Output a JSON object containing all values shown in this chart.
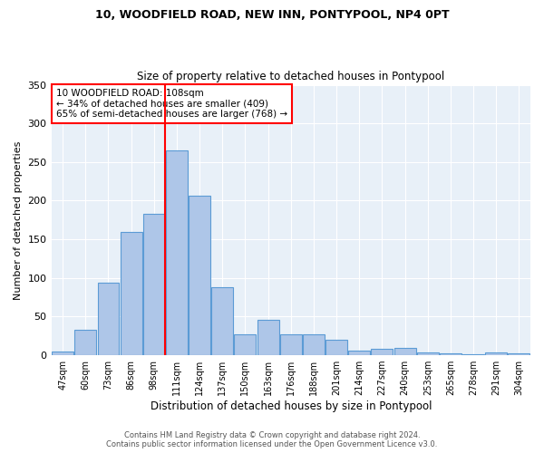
{
  "title1": "10, WOODFIELD ROAD, NEW INN, PONTYPOOL, NP4 0PT",
  "title2": "Size of property relative to detached houses in Pontypool",
  "xlabel": "Distribution of detached houses by size in Pontypool",
  "ylabel": "Number of detached properties",
  "categories": [
    "47sqm",
    "60sqm",
    "73sqm",
    "86sqm",
    "98sqm",
    "111sqm",
    "124sqm",
    "137sqm",
    "150sqm",
    "163sqm",
    "176sqm",
    "188sqm",
    "201sqm",
    "214sqm",
    "227sqm",
    "240sqm",
    "253sqm",
    "265sqm",
    "278sqm",
    "291sqm",
    "304sqm"
  ],
  "values": [
    5,
    33,
    94,
    159,
    183,
    265,
    206,
    88,
    27,
    46,
    27,
    27,
    20,
    6,
    8,
    9,
    4,
    2,
    1,
    4,
    3
  ],
  "bar_color": "#aec6e8",
  "bar_edge_color": "#5b9bd5",
  "property_line_label": "10 WOODFIELD ROAD: 108sqm",
  "annotation_line1": "← 34% of detached houses are smaller (409)",
  "annotation_line2": "65% of semi-detached houses are larger (768) →",
  "annotation_box_color": "white",
  "annotation_box_edge": "red",
  "vline_color": "red",
  "background_color": "#e8f0f8",
  "grid_color": "white",
  "footer1": "Contains HM Land Registry data © Crown copyright and database right 2024.",
  "footer2": "Contains public sector information licensed under the Open Government Licence v3.0.",
  "ylim": [
    0,
    350
  ],
  "vline_x_index": 4.5
}
